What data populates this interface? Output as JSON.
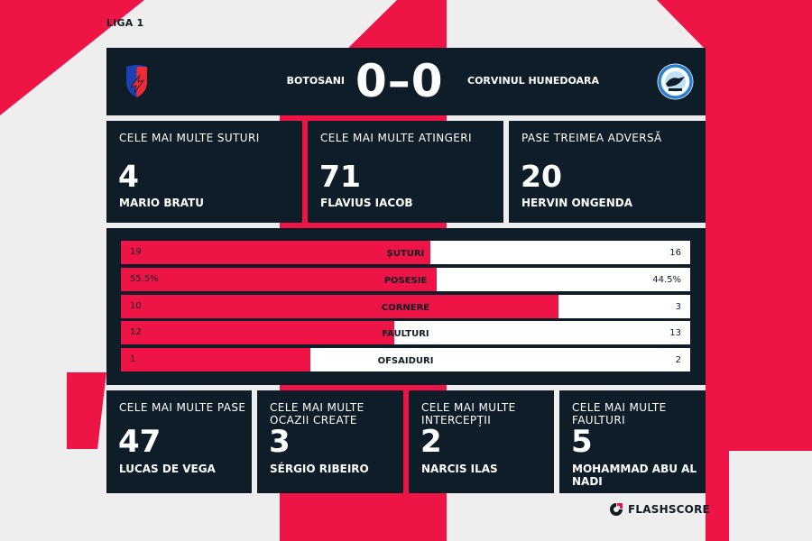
{
  "league": "LIGA 1",
  "match": {
    "home_team": "BOTOSANI",
    "away_team": "CORVINUL HUNEDOARA",
    "score": "0–0",
    "home_crest": "botosani-crest-icon",
    "away_crest": "corvinul-crest-icon"
  },
  "top_stats": [
    {
      "label": "CELE MAI MULTE SUTURI",
      "value": "4",
      "player": "MARIO BRATU"
    },
    {
      "label": "CELE MAI MULTE ATINGERI",
      "value": "71",
      "player": "FLAVIUS IACOB"
    },
    {
      "label": "PASE TREIMEA ADVERSĂ",
      "value": "20",
      "player": "HERVIN ONGENDA"
    }
  ],
  "comparison": [
    {
      "label": "ȘUTURI",
      "home": "19",
      "away": "16",
      "home_share": 0.543
    },
    {
      "label": "POSESIE",
      "home": "55.5%",
      "away": "44.5%",
      "home_share": 0.555
    },
    {
      "label": "CORNERE",
      "home": "10",
      "away": "3",
      "home_share": 0.769
    },
    {
      "label": "FAULTURI",
      "home": "12",
      "away": "13",
      "home_share": 0.48
    },
    {
      "label": "OFSAIDURI",
      "home": "1",
      "away": "2",
      "home_share": 0.333
    }
  ],
  "bottom_stats": [
    {
      "label": "CELE MAI MULTE PASE",
      "value": "47",
      "player": "LUCAS DE VEGA"
    },
    {
      "label": "CELE MAI MULTE OCAZII CREATE",
      "value": "3",
      "player": "SÉRGIO RIBEIRO"
    },
    {
      "label": "CELE MAI MULTE INTERCEPȚII",
      "value": "2",
      "player": "NARCIS ILAS"
    },
    {
      "label": "CELE MAI MULTE FAULTURI",
      "value": "5",
      "player": "MOHAMMAD ABU AL NADI"
    }
  ],
  "brand": {
    "name": "FLASHSCORE",
    "logo": "flashscore-logo-icon"
  },
  "colors": {
    "panel": "#0f1d28",
    "accent": "#ee1446",
    "background": "#eeeeef",
    "text": "#ffffff"
  }
}
